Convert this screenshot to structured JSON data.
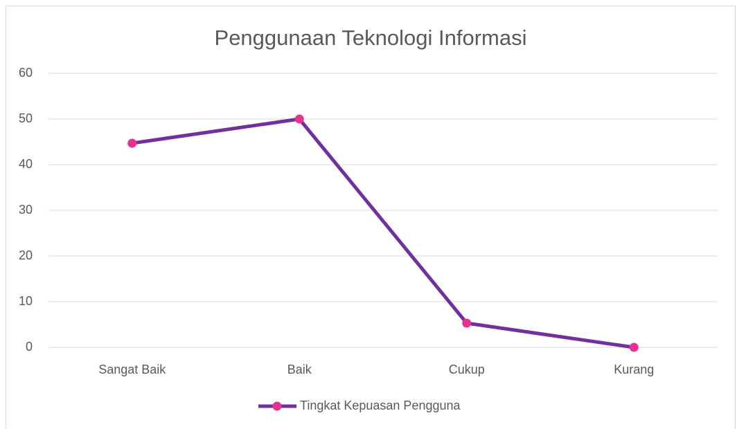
{
  "chart_data": {
    "type": "line",
    "title": "Penggunaan Teknologi Informasi",
    "categories": [
      "Sangat Baik",
      "Baik",
      "Cukup",
      "Kurang"
    ],
    "series": [
      {
        "name": "Tingkat Kepuasan Pengguna",
        "color": "#7030a0",
        "marker_color": "#e6338f",
        "values": [
          44.7,
          50,
          5.3,
          0
        ]
      }
    ],
    "ylim": [
      0,
      60
    ],
    "yticks": [
      0,
      10,
      20,
      30,
      40,
      50,
      60
    ],
    "grid": true,
    "legend": "bottom"
  }
}
